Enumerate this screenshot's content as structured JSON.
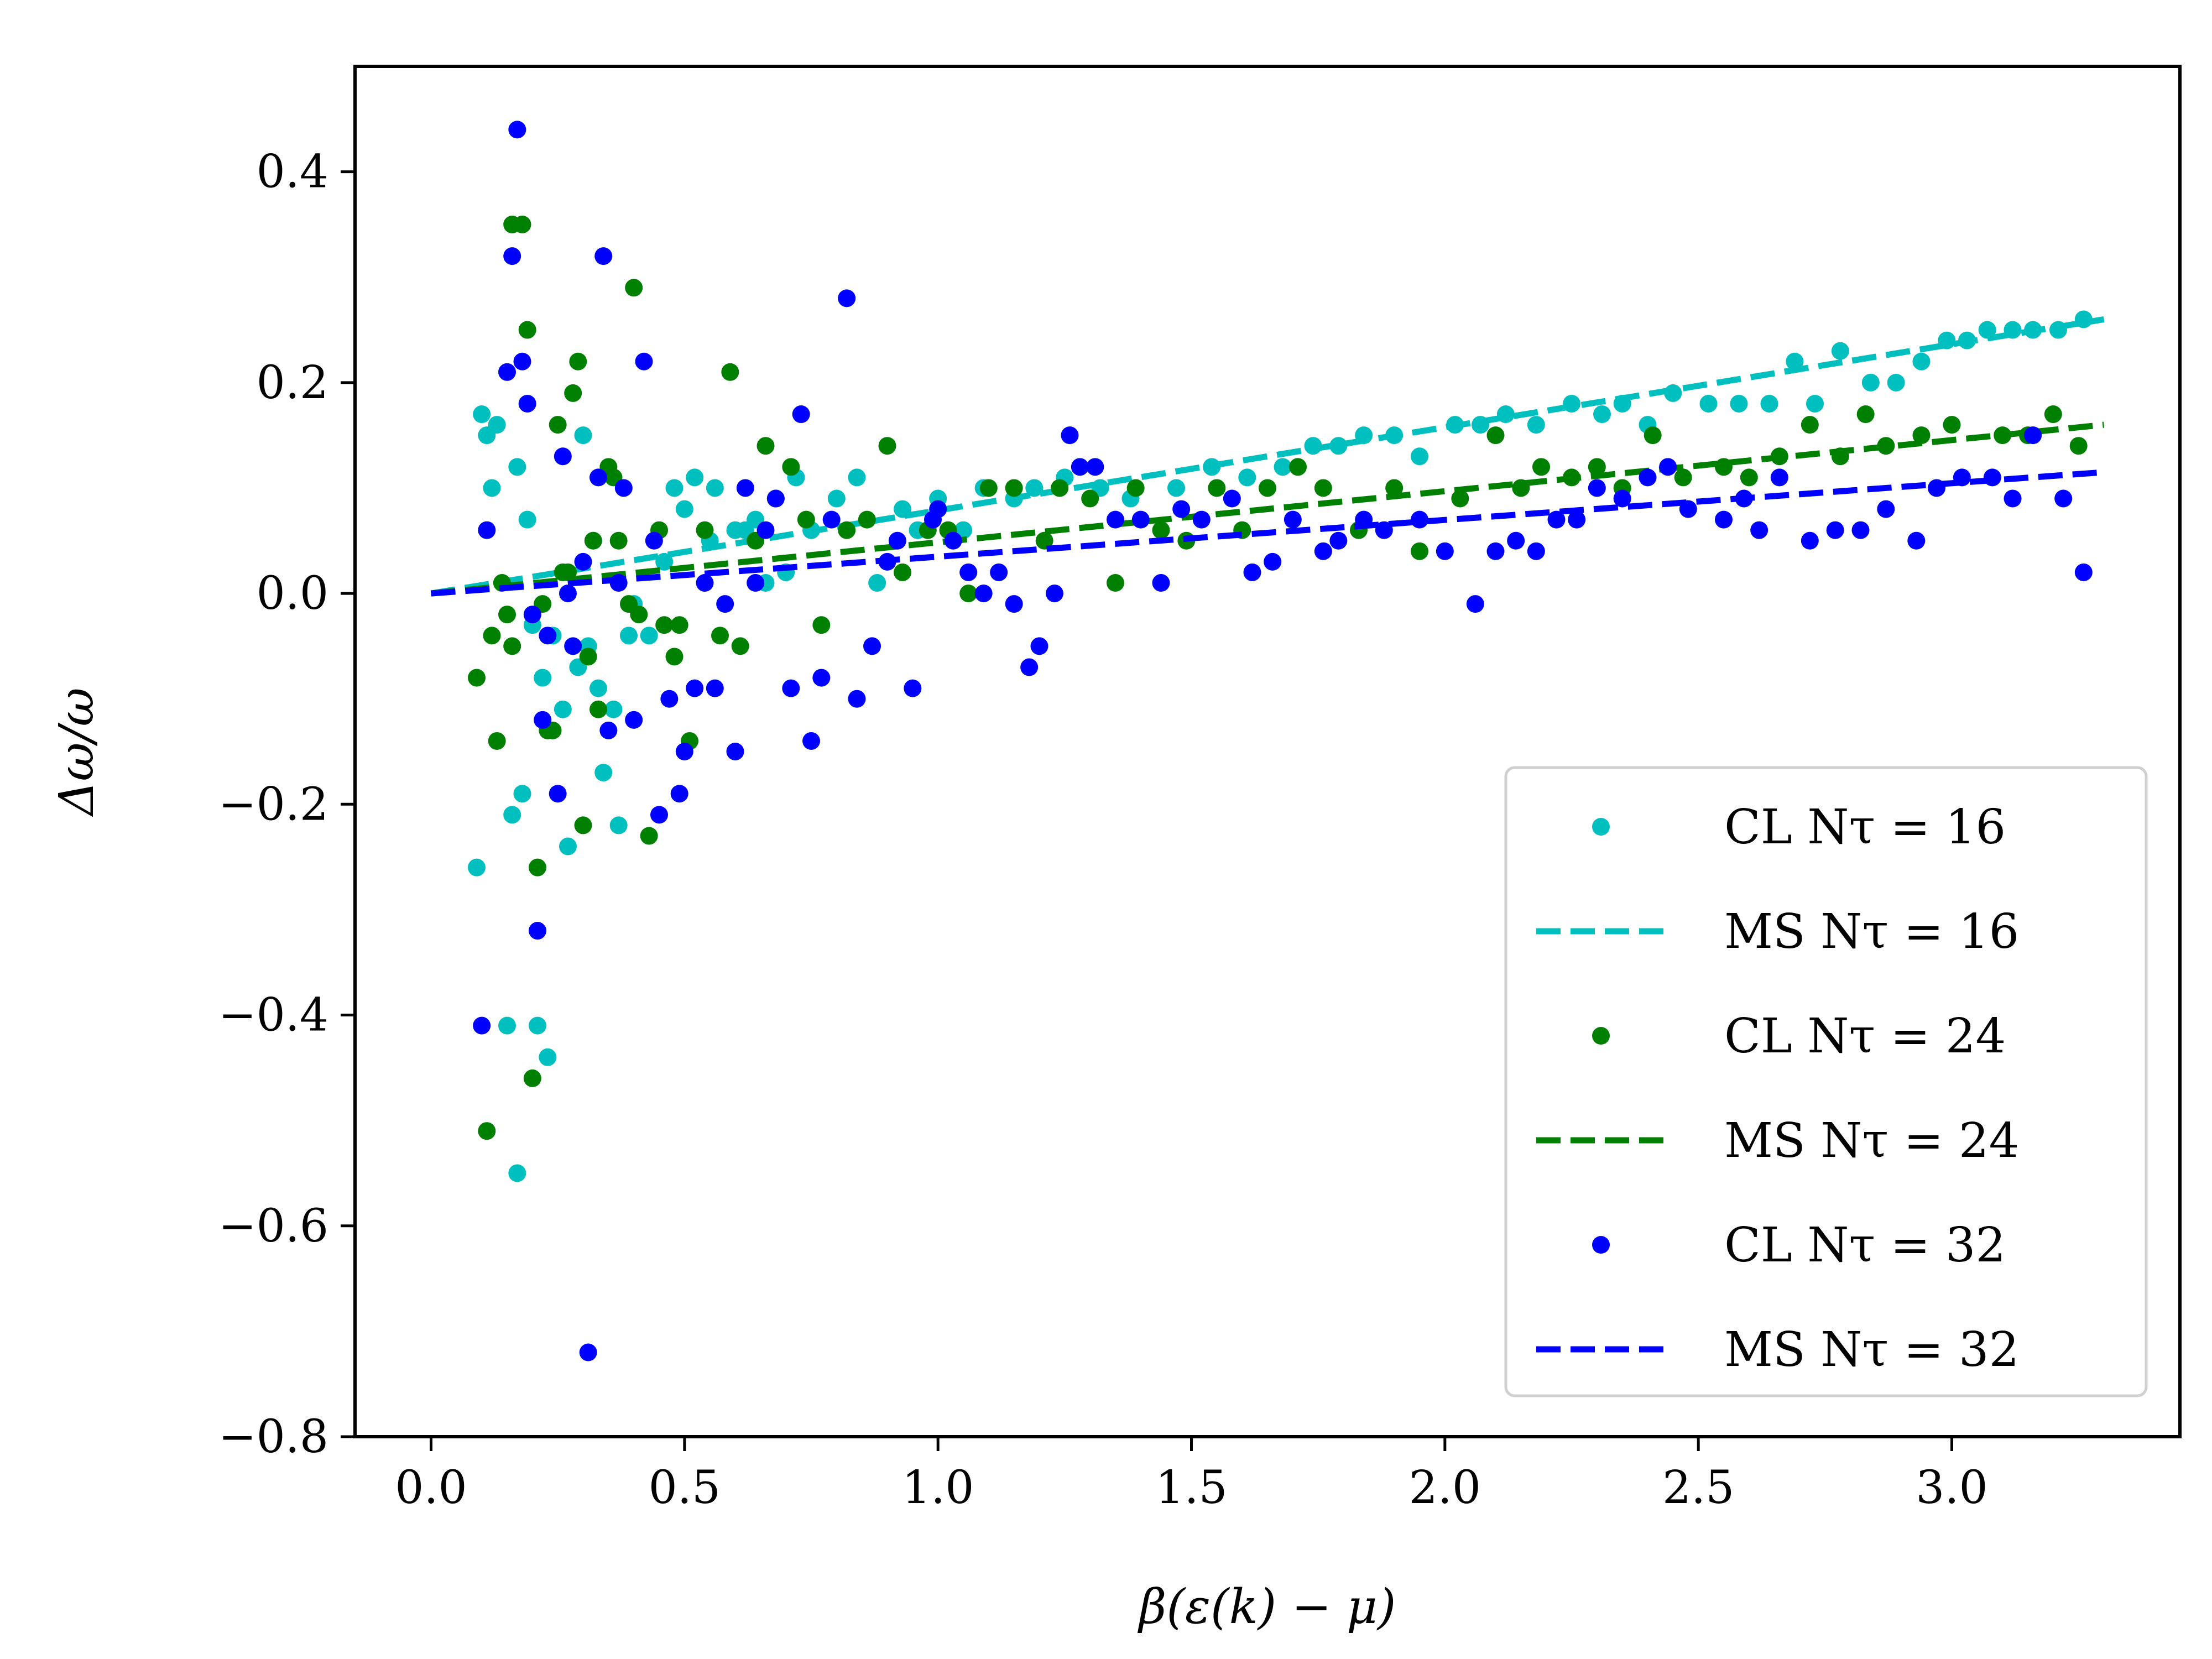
{
  "chart_data": {
    "type": "scatter",
    "title": "",
    "xlabel": "β(ε(k) − μ)",
    "ylabel": "Δω/ω",
    "xlim": [
      -0.15,
      3.45
    ],
    "ylim": [
      -0.8,
      0.5
    ],
    "xticks": [
      0.0,
      0.5,
      1.0,
      1.5,
      2.0,
      2.5,
      3.0
    ],
    "xtick_labels": [
      "0.0",
      "0.5",
      "1.0",
      "1.5",
      "2.0",
      "2.5",
      "3.0"
    ],
    "yticks": [
      0.4,
      0.2,
      0.0,
      -0.2,
      -0.4,
      -0.6,
      -0.8
    ],
    "ytick_labels": [
      "0.4",
      "0.2",
      "0.0",
      "−0.2",
      "−0.4",
      "−0.6",
      "−0.8"
    ],
    "legend_position": "bottom-right",
    "legend": [
      {
        "label": "CL  Nτ = 16",
        "kind": "marker",
        "color": "#00bfbf"
      },
      {
        "label": "MS  Nτ = 16",
        "kind": "dashed",
        "color": "#00bfbf"
      },
      {
        "label": "CL  Nτ = 24",
        "kind": "marker",
        "color": "#008000"
      },
      {
        "label": "MS  Nτ = 24",
        "kind": "dashed",
        "color": "#008000"
      },
      {
        "label": "CL  Nτ = 32",
        "kind": "marker",
        "color": "#0000ff"
      },
      {
        "label": "MS  Nτ = 32",
        "kind": "dashed",
        "color": "#0000ff"
      }
    ],
    "series": [
      {
        "name": "CL Nτ = 16",
        "type": "scatter",
        "color": "#00bfbf",
        "points": [
          [
            0.09,
            -0.26
          ],
          [
            0.1,
            0.17
          ],
          [
            0.11,
            0.15
          ],
          [
            0.12,
            0.1
          ],
          [
            0.13,
            0.16
          ],
          [
            0.15,
            -0.41
          ],
          [
            0.16,
            -0.21
          ],
          [
            0.17,
            -0.55
          ],
          [
            0.17,
            0.12
          ],
          [
            0.18,
            -0.19
          ],
          [
            0.19,
            0.07
          ],
          [
            0.2,
            -0.03
          ],
          [
            0.21,
            -0.41
          ],
          [
            0.22,
            -0.08
          ],
          [
            0.23,
            -0.44
          ],
          [
            0.24,
            -0.04
          ],
          [
            0.26,
            -0.11
          ],
          [
            0.27,
            -0.24
          ],
          [
            0.29,
            -0.07
          ],
          [
            0.3,
            0.15
          ],
          [
            0.31,
            -0.05
          ],
          [
            0.32,
            0.05
          ],
          [
            0.33,
            -0.09
          ],
          [
            0.34,
            -0.17
          ],
          [
            0.36,
            -0.11
          ],
          [
            0.37,
            -0.22
          ],
          [
            0.39,
            -0.04
          ],
          [
            0.4,
            -0.01
          ],
          [
            0.43,
            -0.04
          ],
          [
            0.46,
            0.03
          ],
          [
            0.48,
            0.1
          ],
          [
            0.5,
            0.08
          ],
          [
            0.52,
            0.11
          ],
          [
            0.55,
            0.05
          ],
          [
            0.56,
            0.1
          ],
          [
            0.6,
            0.06
          ],
          [
            0.62,
            0.06
          ],
          [
            0.64,
            0.07
          ],
          [
            0.66,
            0.01
          ],
          [
            0.7,
            0.02
          ],
          [
            0.72,
            0.11
          ],
          [
            0.75,
            0.06
          ],
          [
            0.8,
            0.09
          ],
          [
            0.84,
            0.11
          ],
          [
            0.88,
            0.01
          ],
          [
            0.93,
            0.08
          ],
          [
            0.96,
            0.06
          ],
          [
            1.0,
            0.09
          ],
          [
            1.05,
            0.06
          ],
          [
            1.09,
            0.1
          ],
          [
            1.15,
            0.09
          ],
          [
            1.19,
            0.1
          ],
          [
            1.25,
            0.11
          ],
          [
            1.32,
            0.1
          ],
          [
            1.38,
            0.09
          ],
          [
            1.47,
            0.1
          ],
          [
            1.54,
            0.12
          ],
          [
            1.61,
            0.11
          ],
          [
            1.68,
            0.12
          ],
          [
            1.74,
            0.14
          ],
          [
            1.79,
            0.14
          ],
          [
            1.84,
            0.15
          ],
          [
            1.9,
            0.15
          ],
          [
            1.95,
            0.13
          ],
          [
            2.02,
            0.16
          ],
          [
            2.07,
            0.16
          ],
          [
            2.12,
            0.17
          ],
          [
            2.18,
            0.16
          ],
          [
            2.25,
            0.18
          ],
          [
            2.31,
            0.17
          ],
          [
            2.35,
            0.18
          ],
          [
            2.4,
            0.16
          ],
          [
            2.45,
            0.19
          ],
          [
            2.52,
            0.18
          ],
          [
            2.58,
            0.18
          ],
          [
            2.64,
            0.18
          ],
          [
            2.69,
            0.22
          ],
          [
            2.73,
            0.18
          ],
          [
            2.78,
            0.23
          ],
          [
            2.84,
            0.2
          ],
          [
            2.89,
            0.2
          ],
          [
            2.94,
            0.22
          ],
          [
            2.99,
            0.24
          ],
          [
            3.03,
            0.24
          ],
          [
            3.07,
            0.25
          ],
          [
            3.12,
            0.25
          ],
          [
            3.16,
            0.25
          ],
          [
            3.21,
            0.25
          ],
          [
            3.26,
            0.26
          ]
        ]
      },
      {
        "name": "MS Nτ = 16",
        "type": "line",
        "dashed": true,
        "color": "#00bfbf",
        "x": [
          0.0,
          3.3
        ],
        "y": [
          0.0,
          0.26
        ]
      },
      {
        "name": "CL Nτ = 24",
        "type": "scatter",
        "color": "#008000",
        "points": [
          [
            0.09,
            -0.08
          ],
          [
            0.11,
            -0.51
          ],
          [
            0.12,
            -0.04
          ],
          [
            0.13,
            -0.14
          ],
          [
            0.14,
            0.01
          ],
          [
            0.15,
            -0.02
          ],
          [
            0.16,
            -0.05
          ],
          [
            0.16,
            0.35
          ],
          [
            0.18,
            0.35
          ],
          [
            0.19,
            0.25
          ],
          [
            0.2,
            -0.46
          ],
          [
            0.21,
            -0.26
          ],
          [
            0.22,
            -0.01
          ],
          [
            0.23,
            -0.13
          ],
          [
            0.24,
            -0.13
          ],
          [
            0.25,
            0.16
          ],
          [
            0.26,
            0.02
          ],
          [
            0.27,
            0.02
          ],
          [
            0.28,
            0.19
          ],
          [
            0.29,
            0.22
          ],
          [
            0.3,
            -0.22
          ],
          [
            0.31,
            -0.06
          ],
          [
            0.32,
            0.05
          ],
          [
            0.33,
            -0.11
          ],
          [
            0.35,
            0.12
          ],
          [
            0.36,
            0.11
          ],
          [
            0.37,
            0.05
          ],
          [
            0.39,
            -0.01
          ],
          [
            0.4,
            0.29
          ],
          [
            0.41,
            -0.02
          ],
          [
            0.43,
            -0.23
          ],
          [
            0.45,
            0.06
          ],
          [
            0.46,
            -0.03
          ],
          [
            0.48,
            -0.06
          ],
          [
            0.49,
            -0.03
          ],
          [
            0.51,
            -0.14
          ],
          [
            0.54,
            0.06
          ],
          [
            0.57,
            -0.04
          ],
          [
            0.59,
            0.21
          ],
          [
            0.61,
            -0.05
          ],
          [
            0.64,
            0.05
          ],
          [
            0.66,
            0.14
          ],
          [
            0.68,
            0.09
          ],
          [
            0.71,
            0.12
          ],
          [
            0.74,
            0.07
          ],
          [
            0.77,
            -0.03
          ],
          [
            0.82,
            0.06
          ],
          [
            0.86,
            0.07
          ],
          [
            0.9,
            0.14
          ],
          [
            0.93,
            0.02
          ],
          [
            0.98,
            0.06
          ],
          [
            1.02,
            0.06
          ],
          [
            1.06,
            0.0
          ],
          [
            1.1,
            0.1
          ],
          [
            1.15,
            0.1
          ],
          [
            1.21,
            0.05
          ],
          [
            1.24,
            0.1
          ],
          [
            1.3,
            0.09
          ],
          [
            1.35,
            0.01
          ],
          [
            1.39,
            0.1
          ],
          [
            1.44,
            0.06
          ],
          [
            1.49,
            0.05
          ],
          [
            1.55,
            0.1
          ],
          [
            1.6,
            0.06
          ],
          [
            1.65,
            0.1
          ],
          [
            1.71,
            0.12
          ],
          [
            1.76,
            0.1
          ],
          [
            1.83,
            0.06
          ],
          [
            1.9,
            0.1
          ],
          [
            1.95,
            0.04
          ],
          [
            2.03,
            0.09
          ],
          [
            2.1,
            0.15
          ],
          [
            2.15,
            0.1
          ],
          [
            2.19,
            0.12
          ],
          [
            2.25,
            0.11
          ],
          [
            2.3,
            0.12
          ],
          [
            2.35,
            0.1
          ],
          [
            2.41,
            0.15
          ],
          [
            2.47,
            0.11
          ],
          [
            2.55,
            0.12
          ],
          [
            2.6,
            0.11
          ],
          [
            2.66,
            0.13
          ],
          [
            2.72,
            0.16
          ],
          [
            2.78,
            0.13
          ],
          [
            2.83,
            0.17
          ],
          [
            2.87,
            0.14
          ],
          [
            2.94,
            0.15
          ],
          [
            3.0,
            0.16
          ],
          [
            3.1,
            0.15
          ],
          [
            3.15,
            0.15
          ],
          [
            3.2,
            0.17
          ],
          [
            3.25,
            0.14
          ]
        ]
      },
      {
        "name": "MS Nτ = 24",
        "type": "line",
        "dashed": true,
        "color": "#008000",
        "x": [
          0.0,
          3.3
        ],
        "y": [
          0.0,
          0.16
        ]
      },
      {
        "name": "CL Nτ = 32",
        "type": "scatter",
        "color": "#0000ff",
        "points": [
          [
            0.1,
            -0.41
          ],
          [
            0.11,
            0.06
          ],
          [
            0.15,
            0.21
          ],
          [
            0.16,
            0.32
          ],
          [
            0.17,
            0.44
          ],
          [
            0.18,
            0.22
          ],
          [
            0.19,
            0.18
          ],
          [
            0.2,
            -0.02
          ],
          [
            0.21,
            -0.32
          ],
          [
            0.22,
            -0.12
          ],
          [
            0.23,
            -0.04
          ],
          [
            0.25,
            -0.19
          ],
          [
            0.26,
            0.13
          ],
          [
            0.27,
            0.0
          ],
          [
            0.28,
            -0.05
          ],
          [
            0.3,
            0.03
          ],
          [
            0.31,
            -0.72
          ],
          [
            0.33,
            0.11
          ],
          [
            0.34,
            0.32
          ],
          [
            0.35,
            -0.13
          ],
          [
            0.37,
            0.01
          ],
          [
            0.38,
            0.1
          ],
          [
            0.4,
            -0.12
          ],
          [
            0.42,
            0.22
          ],
          [
            0.44,
            0.05
          ],
          [
            0.45,
            -0.21
          ],
          [
            0.47,
            -0.1
          ],
          [
            0.49,
            -0.19
          ],
          [
            0.5,
            -0.15
          ],
          [
            0.52,
            -0.09
          ],
          [
            0.54,
            0.01
          ],
          [
            0.56,
            -0.09
          ],
          [
            0.58,
            -0.01
          ],
          [
            0.6,
            -0.15
          ],
          [
            0.62,
            0.1
          ],
          [
            0.64,
            0.01
          ],
          [
            0.66,
            0.06
          ],
          [
            0.68,
            0.09
          ],
          [
            0.71,
            -0.09
          ],
          [
            0.73,
            0.17
          ],
          [
            0.75,
            -0.14
          ],
          [
            0.77,
            -0.08
          ],
          [
            0.79,
            0.07
          ],
          [
            0.82,
            0.28
          ],
          [
            0.84,
            -0.1
          ],
          [
            0.87,
            -0.05
          ],
          [
            0.9,
            0.03
          ],
          [
            0.92,
            0.05
          ],
          [
            0.95,
            -0.09
          ],
          [
            0.99,
            0.07
          ],
          [
            1.0,
            0.08
          ],
          [
            1.03,
            0.05
          ],
          [
            1.06,
            0.02
          ],
          [
            1.09,
            0.0
          ],
          [
            1.12,
            0.02
          ],
          [
            1.15,
            -0.01
          ],
          [
            1.18,
            -0.07
          ],
          [
            1.2,
            -0.05
          ],
          [
            1.23,
            0.0
          ],
          [
            1.26,
            0.15
          ],
          [
            1.28,
            0.12
          ],
          [
            1.31,
            0.12
          ],
          [
            1.35,
            0.07
          ],
          [
            1.4,
            0.07
          ],
          [
            1.44,
            0.01
          ],
          [
            1.48,
            0.08
          ],
          [
            1.52,
            0.07
          ],
          [
            1.58,
            0.09
          ],
          [
            1.62,
            0.02
          ],
          [
            1.66,
            0.03
          ],
          [
            1.7,
            0.07
          ],
          [
            1.76,
            0.04
          ],
          [
            1.79,
            0.05
          ],
          [
            1.84,
            0.07
          ],
          [
            1.88,
            0.06
          ],
          [
            1.95,
            0.07
          ],
          [
            2.0,
            0.04
          ],
          [
            2.06,
            -0.01
          ],
          [
            2.1,
            0.04
          ],
          [
            2.14,
            0.05
          ],
          [
            2.18,
            0.04
          ],
          [
            2.22,
            0.07
          ],
          [
            2.26,
            0.07
          ],
          [
            2.3,
            0.1
          ],
          [
            2.35,
            0.09
          ],
          [
            2.4,
            0.11
          ],
          [
            2.44,
            0.12
          ],
          [
            2.48,
            0.08
          ],
          [
            2.55,
            0.07
          ],
          [
            2.59,
            0.09
          ],
          [
            2.62,
            0.06
          ],
          [
            2.66,
            0.11
          ],
          [
            2.72,
            0.05
          ],
          [
            2.77,
            0.06
          ],
          [
            2.82,
            0.06
          ],
          [
            2.87,
            0.08
          ],
          [
            2.93,
            0.05
          ],
          [
            2.97,
            0.1
          ],
          [
            3.02,
            0.11
          ],
          [
            3.08,
            0.11
          ],
          [
            3.12,
            0.09
          ],
          [
            3.16,
            0.15
          ],
          [
            3.22,
            0.09
          ],
          [
            3.26,
            0.02
          ]
        ]
      },
      {
        "name": "MS Nτ = 32",
        "type": "line",
        "dashed": true,
        "color": "#0000ff",
        "x": [
          0.0,
          3.3
        ],
        "y": [
          0.0,
          0.115
        ]
      }
    ]
  }
}
